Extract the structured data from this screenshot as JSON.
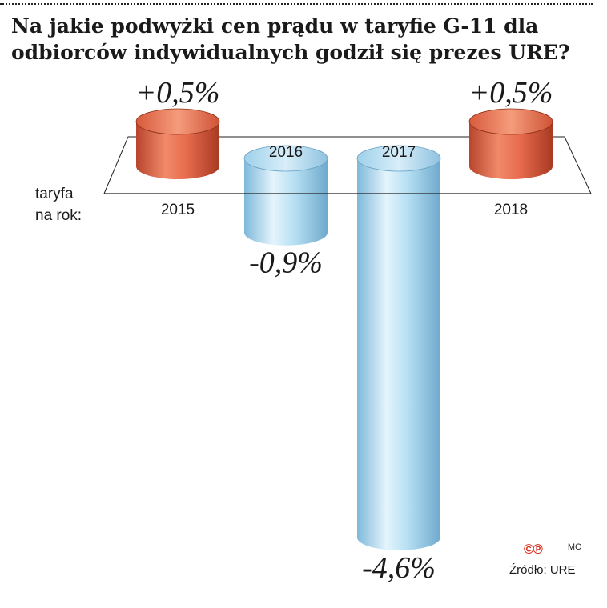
{
  "title": "Na jakie podwyżki cen prądu w taryfie G-11 dla odbiorców indywidualnych godził się prezes URE?",
  "row_label_line1": "taryfa",
  "row_label_line2": "na rok:",
  "chart_data": {
    "type": "bar",
    "title": "Na jakie podwyżki cen prądu w taryfie G-11 dla odbiorców indywidualnych godził się prezes URE?",
    "categories": [
      "2015",
      "2016",
      "2017",
      "2018"
    ],
    "values": [
      0.5,
      -0.9,
      -4.6,
      0.5
    ],
    "value_labels": [
      "+0,5%",
      "-0,9%",
      "-4,6%",
      "+0,5%"
    ],
    "unit": "%",
    "colors": {
      "positive": "#e06848",
      "negative": "#a8d8f0"
    },
    "grid": false,
    "legend": "none"
  },
  "logo_text": "©℗",
  "credits": "MC",
  "source": "Źródło: URE"
}
